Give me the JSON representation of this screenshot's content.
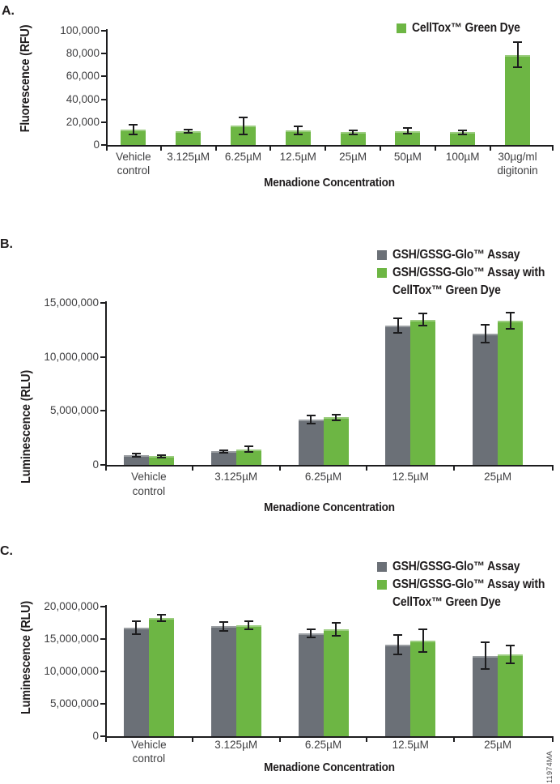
{
  "figure": {
    "watermark": "11974MA"
  },
  "colors": {
    "green": "#6db644",
    "gray": "#6b7077",
    "axis": "#1c1c1e",
    "tick_text": "#3f3f41",
    "title_text": "#1f1c1d"
  },
  "chart_data": [
    {
      "panel_label": "A.",
      "type": "bar",
      "xlabel": "Menadione Concentration",
      "ylabel": "Fluorescence (RFU)",
      "ylim": [
        0,
        100000
      ],
      "ytick_labels": [
        "0",
        "20,000",
        "40,000",
        "60,000",
        "80,000",
        "100,000"
      ],
      "grid": false,
      "legend_position": "top-right",
      "categories": [
        [
          "Vehicle",
          "control"
        ],
        [
          "3.125µM"
        ],
        [
          "6.25µM"
        ],
        [
          "12.5µM"
        ],
        [
          "25µM"
        ],
        [
          "50µM"
        ],
        [
          "100µM"
        ],
        [
          "30µg/ml",
          "digitonin"
        ]
      ],
      "legend": [
        {
          "color_key": "green",
          "lines": [
            "CellTox™ Green Dye"
          ]
        }
      ],
      "series": [
        {
          "name": "CellTox™ Green Dye",
          "color_key": "green",
          "values": [
            13500,
            12300,
            17000,
            13000,
            11200,
            12300,
            11100,
            79000
          ],
          "errors": [
            4500,
            1500,
            7500,
            3500,
            1800,
            2500,
            1800,
            11000
          ]
        }
      ]
    },
    {
      "panel_label": "B.",
      "type": "bar",
      "xlabel": "Menadione Concentration",
      "ylabel": "Luminescence (RLU)",
      "ylim": [
        0,
        15000000
      ],
      "ytick_labels": [
        "0",
        "5,000,000",
        "10,000,000",
        "15,000,000"
      ],
      "grid": false,
      "legend_position": "top-right",
      "categories": [
        [
          "Vehicle",
          "control"
        ],
        [
          "3.125µM"
        ],
        [
          "6.25µM"
        ],
        [
          "12.5µM"
        ],
        [
          "25µM"
        ]
      ],
      "legend": [
        {
          "color_key": "gray",
          "lines": [
            "GSH/GSSG-Glo™ Assay"
          ]
        },
        {
          "color_key": "green",
          "lines": [
            "GSH/GSSG-Glo™ Assay with",
            "CellTox™ Green Dye"
          ]
        }
      ],
      "series": [
        {
          "name": "GSH/GSSG-Glo™ Assay",
          "color_key": "gray",
          "values": [
            900000,
            1250000,
            4200000,
            12900000,
            12150000
          ],
          "errors": [
            150000,
            120000,
            400000,
            650000,
            850000
          ]
        },
        {
          "name": "GSH/GSSG-Glo™ Assay with CellTox™ Green Dye",
          "color_key": "green",
          "values": [
            800000,
            1450000,
            4400000,
            13450000,
            13350000
          ],
          "errors": [
            100000,
            280000,
            280000,
            550000,
            750000
          ]
        }
      ]
    },
    {
      "panel_label": "C.",
      "type": "bar",
      "xlabel": "Menadione Concentration",
      "ylabel": "Luminescence (RLU)",
      "ylim": [
        0,
        20000000
      ],
      "ytick_labels": [
        "0",
        "5,000,000",
        "10,000,000",
        "15,000,000",
        "20,000,000"
      ],
      "grid": false,
      "legend_position": "top-right",
      "categories": [
        [
          "Vehicle",
          "control"
        ],
        [
          "3.125µM"
        ],
        [
          "6.25µM"
        ],
        [
          "12.5µM"
        ],
        [
          "25µM"
        ]
      ],
      "legend": [
        {
          "color_key": "gray",
          "lines": [
            "GSH/GSSG-Glo™ Assay"
          ]
        },
        {
          "color_key": "green",
          "lines": [
            "GSH/GSSG-Glo™ Assay with",
            "CellTox™ Green Dye"
          ]
        }
      ],
      "series": [
        {
          "name": "GSH/GSSG-Glo™ Assay",
          "color_key": "gray",
          "values": [
            16700000,
            16900000,
            15800000,
            14100000,
            12400000
          ],
          "errors": [
            1000000,
            700000,
            600000,
            1500000,
            2000000
          ]
        },
        {
          "name": "GSH/GSSG-Glo™ Assay with CellTox™ Green Dye",
          "color_key": "green",
          "values": [
            18200000,
            17100000,
            16500000,
            14700000,
            12600000
          ],
          "errors": [
            500000,
            600000,
            1000000,
            1700000,
            1400000
          ]
        }
      ]
    }
  ]
}
